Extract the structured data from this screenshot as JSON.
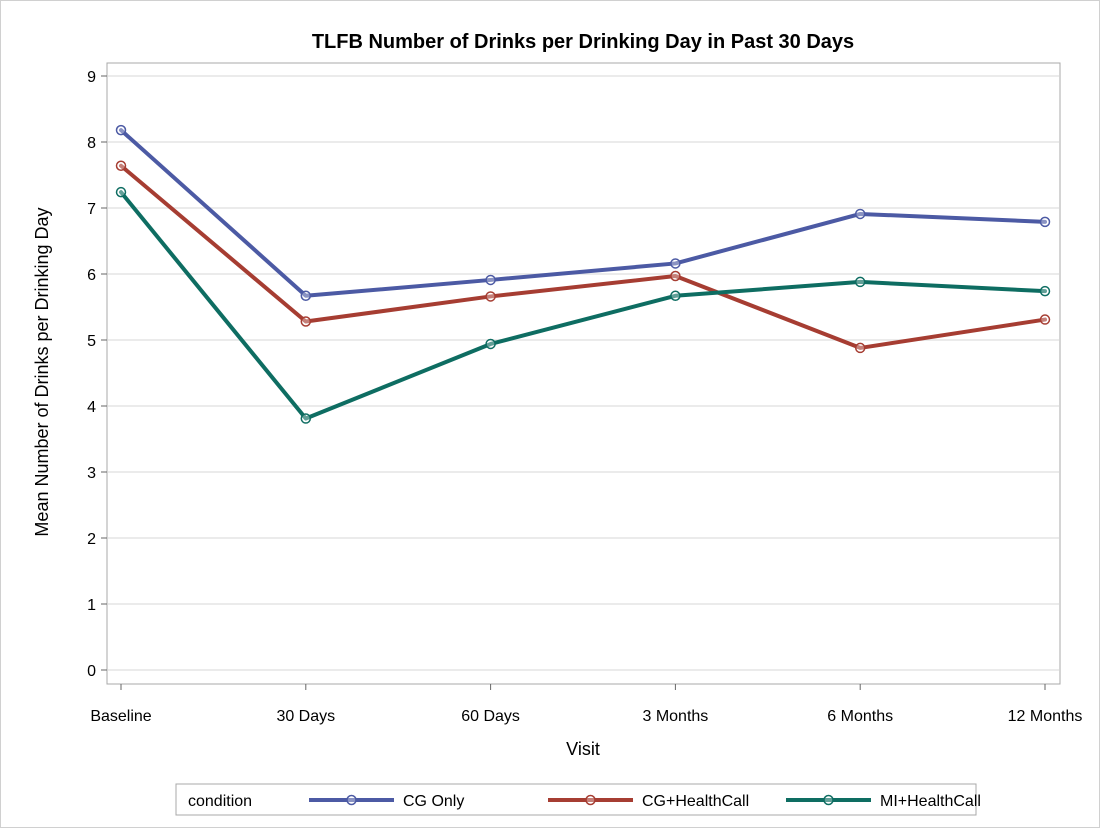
{
  "chart_data": {
    "type": "line",
    "title": "TLFB Number of Drinks per Drinking Day in Past 30 Days",
    "xlabel": "Visit",
    "ylabel": "Mean Number of Drinks per Drinking Day",
    "categories": [
      "Baseline",
      "30 Days",
      "60 Days",
      "3 Months",
      "6 Months",
      "12 Months"
    ],
    "ylim": [
      0,
      9
    ],
    "yticks": [
      0,
      1,
      2,
      3,
      4,
      5,
      6,
      7,
      8,
      9
    ],
    "grid": "horizontal",
    "legend": {
      "title": "condition",
      "placement": "bottom"
    },
    "series": [
      {
        "name": "CG Only",
        "color": "#4c5aa4",
        "values": [
          8.18,
          5.67,
          5.91,
          6.16,
          6.91,
          6.79
        ]
      },
      {
        "name": "CG+HealthCall",
        "color": "#a63d32",
        "values": [
          7.64,
          5.28,
          5.66,
          5.97,
          4.88,
          5.31
        ]
      },
      {
        "name": "MI+HealthCall",
        "color": "#0e6d62",
        "values": [
          7.24,
          3.81,
          4.94,
          5.67,
          5.88,
          5.74
        ]
      }
    ]
  }
}
